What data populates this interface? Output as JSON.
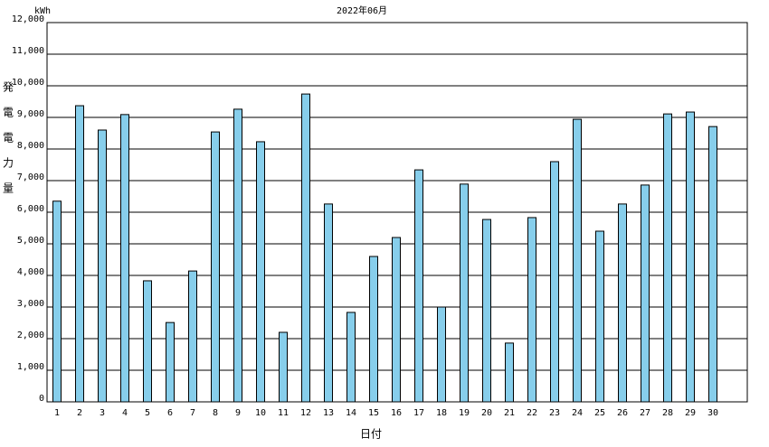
{
  "chart_data": {
    "type": "bar",
    "title": "2022年06月",
    "unit_label": "kWh",
    "y_label": "発電電力量",
    "x_label": "日付",
    "categories": [
      "1",
      "2",
      "3",
      "4",
      "5",
      "6",
      "7",
      "8",
      "9",
      "10",
      "11",
      "12",
      "13",
      "14",
      "15",
      "16",
      "17",
      "18",
      "19",
      "20",
      "21",
      "22",
      "23",
      "24",
      "25",
      "26",
      "27",
      "28",
      "29",
      "30"
    ],
    "values": [
      6350,
      9370,
      8600,
      9090,
      3830,
      2510,
      4140,
      8540,
      9260,
      8230,
      2200,
      9740,
      6260,
      2830,
      4600,
      5200,
      7340,
      3000,
      6890,
      5770,
      1860,
      5830,
      7600,
      8940,
      5400,
      6260,
      6860,
      9110,
      9170,
      8710
    ],
    "color": "#87ceeb",
    "ylim": [
      0,
      12000
    ],
    "yticks": [
      0,
      {
        "value": 1000,
        "label": "1,000"
      },
      {
        "value": 2000,
        "label": "2,000"
      },
      {
        "value": 3000,
        "label": "3,000"
      },
      {
        "value": 4000,
        "label": "4,000"
      },
      {
        "value": 5000,
        "label": "5,000"
      },
      {
        "value": 6000,
        "label": "6,000"
      },
      {
        "value": 7000,
        "label": "7,000"
      },
      {
        "value": 8000,
        "label": "8,000"
      },
      {
        "value": 9000,
        "label": "9,000"
      },
      {
        "value": 10000,
        "label": "10,000"
      },
      {
        "value": 11000,
        "label": "11,000"
      },
      {
        "value": 12000,
        "label": "12,000"
      }
    ],
    "grid": true
  }
}
